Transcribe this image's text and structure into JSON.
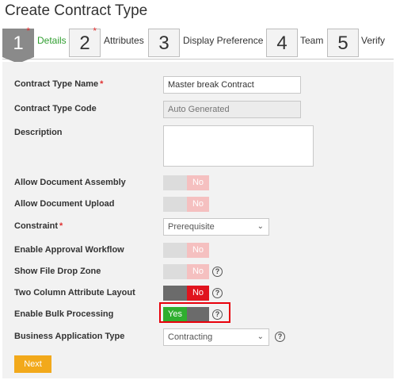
{
  "page": {
    "title": "Create Contract Type"
  },
  "steps": [
    {
      "number": "1",
      "label": "Details",
      "required": "*"
    },
    {
      "number": "2",
      "label": "Attributes",
      "required": "*"
    },
    {
      "number": "3",
      "label": "Display Preference",
      "required": ""
    },
    {
      "number": "4",
      "label": "Team",
      "required": ""
    },
    {
      "number": "5",
      "label": "Verify",
      "required": ""
    }
  ],
  "form": {
    "contract_type_name": {
      "label": "Contract Type Name",
      "required": "*",
      "value": "Master break Contract"
    },
    "contract_type_code": {
      "label": "Contract Type Code",
      "value": "Auto Generated"
    },
    "description": {
      "label": "Description",
      "value": ""
    },
    "allow_document_assembly": {
      "label": "Allow Document Assembly",
      "state": "No"
    },
    "allow_document_upload": {
      "label": "Allow Document Upload",
      "state": "No"
    },
    "constraint": {
      "label": "Constraint",
      "required": "*",
      "value": "Prerequisite"
    },
    "enable_approval_workflow": {
      "label": "Enable Approval Workflow",
      "state": "No"
    },
    "show_file_drop_zone": {
      "label": "Show File Drop Zone",
      "state": "No",
      "help": "?"
    },
    "two_column_attribute_layout": {
      "label": "Two Column Attribute Layout",
      "state": "No",
      "help": "?"
    },
    "enable_bulk_processing": {
      "label": "Enable Bulk Processing",
      "state": "Yes",
      "help": "?"
    },
    "business_application_type": {
      "label": "Business Application Type",
      "value": "Contracting",
      "help": "?"
    }
  },
  "actions": {
    "next_label": "Next"
  },
  "colors": {
    "accent_green": "#2fae2f",
    "toggle_red": "#e0141e",
    "next_orange": "#f2a91b",
    "highlight_red": "#e8000b"
  }
}
